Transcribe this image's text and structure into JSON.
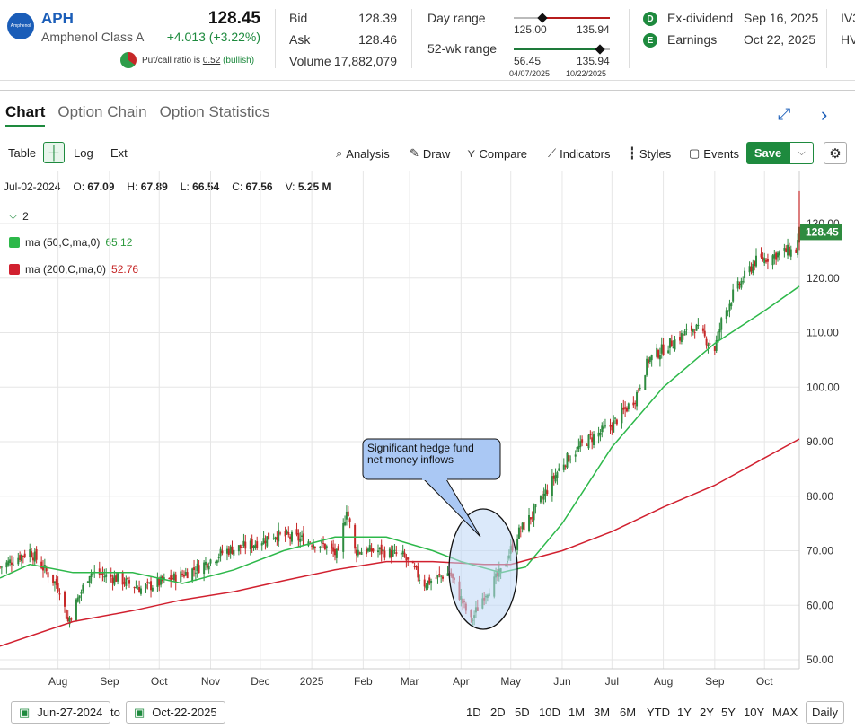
{
  "quote": {
    "logo_text": "Amphenol",
    "symbol": "APH",
    "company": "Amphenol Class A",
    "price": "128.45",
    "change": "+4.013 (+3.22%)",
    "putcall_prefix": "Put/call ratio is ",
    "putcall_value": "0.52",
    "putcall_suffix": "(bullish)",
    "bid_label": "Bid",
    "bid": "128.39",
    "ask_label": "Ask",
    "ask": "128.46",
    "volume_label": "Volume",
    "volume": "17,882,079",
    "day_range_label": "Day range",
    "day_low": "125.00",
    "day_high": "135.94",
    "wk52_label": "52-wk range",
    "wk52_low": "56.45",
    "wk52_high": "135.94",
    "wk52_low_date": "04/07/2025",
    "wk52_high_date": "10/22/2025",
    "exdiv_badge": "D",
    "exdiv_label": "Ex-dividend",
    "exdiv_date": "Sep 16, 2025",
    "earn_badge": "E",
    "earn_label": "Earnings",
    "earn_date": "Oct 22, 2025",
    "cutoff_1": "IV3",
    "cutoff_2": "HV"
  },
  "tabs": [
    {
      "label": "Chart",
      "active": true
    },
    {
      "label": "Option Chain",
      "active": false
    },
    {
      "label": "Option Statistics",
      "active": false
    }
  ],
  "toolbar": {
    "table": "Table",
    "log": "Log",
    "ext": "Ext",
    "analysis": "Analysis",
    "draw": "Draw",
    "compare": "Compare",
    "indicators": "Indicators",
    "styles": "Styles",
    "events": "Events",
    "save": "Save"
  },
  "ohlc": {
    "date": "Jul-02-2024",
    "o_label": "O:",
    "o": "67.09",
    "h_label": "H:",
    "h": "67.89",
    "l_label": "L:",
    "l": "66.54",
    "c_label": "C:",
    "c": "67.56",
    "v_label": "V:",
    "v": "5.25 M"
  },
  "legend": {
    "count": "2",
    "ma50_label": "ma (50,C,ma,0)",
    "ma50_value": "65.12",
    "ma50_color": "#2db84a",
    "ma200_label": "ma (200,C,ma,0)",
    "ma200_value": "52.76",
    "ma200_color": "#d1202f"
  },
  "annotation": {
    "line1": "Significant hedge fund",
    "line2": "net money inflows"
  },
  "footer": {
    "from": "Jun-27-2024",
    "to_label": "to",
    "to": "Oct-22-2025",
    "ranges": [
      "1D",
      "2D",
      "5D",
      "10D",
      "1M",
      "3M",
      "6M",
      "YTD",
      "1Y",
      "2Y",
      "5Y",
      "10Y",
      "MAX"
    ],
    "interval": "Daily"
  },
  "chart_data": {
    "type": "candlestick",
    "last_price_label": "128.45",
    "ylim": [
      50,
      135
    ],
    "y_ticks": [
      50,
      60,
      70,
      80,
      90,
      100,
      110,
      120,
      130
    ],
    "y_tick_labels": [
      "50.00",
      "60.00",
      "70.00",
      "80.00",
      "90.00",
      "100.00",
      "110.00",
      "120.00",
      "130.00"
    ],
    "x_tick_labels": [
      "Aug",
      "Sep",
      "Oct",
      "Nov",
      "Dec",
      "2025",
      "Feb",
      "Mar",
      "Apr",
      "May",
      "Jun",
      "Jul",
      "Aug",
      "Sep",
      "Oct"
    ],
    "x_tick_dates": [
      "2024-08-01",
      "2024-09-01",
      "2024-10-01",
      "2024-11-01",
      "2024-12-01",
      "2025-01-01",
      "2025-02-01",
      "2025-03-01",
      "2025-04-01",
      "2025-05-01",
      "2025-06-01",
      "2025-07-01",
      "2025-08-01",
      "2025-09-01",
      "2025-10-01"
    ],
    "price_series": {
      "name": "APH",
      "dates": [
        "2024-06-27",
        "2024-07-15",
        "2024-08-02",
        "2024-08-07",
        "2024-08-20",
        "2024-09-05",
        "2024-09-20",
        "2024-10-10",
        "2024-10-25",
        "2024-11-10",
        "2024-11-25",
        "2024-12-10",
        "2024-12-27",
        "2025-01-08",
        "2025-01-17",
        "2025-01-22",
        "2025-01-27",
        "2025-02-10",
        "2025-02-25",
        "2025-03-10",
        "2025-03-25",
        "2025-04-07",
        "2025-04-15",
        "2025-04-25",
        "2025-05-05",
        "2025-05-15",
        "2025-06-01",
        "2025-06-15",
        "2025-07-01",
        "2025-07-15",
        "2025-07-23",
        "2025-08-01",
        "2025-08-10",
        "2025-08-20",
        "2025-09-01",
        "2025-09-05",
        "2025-09-12",
        "2025-09-25",
        "2025-10-05",
        "2025-10-15",
        "2025-10-20",
        "2025-10-22"
      ],
      "close": [
        67,
        70,
        63,
        57,
        66,
        65,
        63,
        65,
        67,
        70,
        71,
        73,
        72,
        71,
        69,
        78,
        70,
        70,
        69,
        64,
        66,
        57,
        62,
        66,
        73,
        77,
        86,
        90,
        93,
        98,
        105,
        107,
        109,
        111,
        107,
        112,
        117,
        123,
        124,
        125,
        125,
        128.45
      ]
    },
    "ma50": {
      "name": "ma (50,C,ma,0)",
      "dates": [
        "2024-06-27",
        "2024-07-15",
        "2024-08-10",
        "2024-09-15",
        "2024-10-15",
        "2024-11-15",
        "2024-12-15",
        "2025-01-15",
        "2025-02-15",
        "2025-03-15",
        "2025-04-01",
        "2025-04-25",
        "2025-05-10",
        "2025-06-01",
        "2025-07-01",
        "2025-08-01",
        "2025-09-01",
        "2025-10-01",
        "2025-10-22"
      ],
      "values": [
        65,
        67.5,
        66,
        66,
        64,
        66.5,
        70,
        72.5,
        72.5,
        70,
        68,
        66,
        67,
        75,
        89,
        100,
        108,
        114,
        118.5
      ]
    },
    "ma200": {
      "name": "ma (200,C,ma,0)",
      "dates": [
        "2024-06-27",
        "2024-08-10",
        "2024-09-15",
        "2024-10-15",
        "2024-11-15",
        "2024-12-15",
        "2025-01-15",
        "2025-02-15",
        "2025-03-15",
        "2025-04-15",
        "2025-05-01",
        "2025-06-01",
        "2025-07-01",
        "2025-08-01",
        "2025-09-01",
        "2025-10-01",
        "2025-10-22"
      ],
      "values": [
        52.5,
        57,
        59,
        61,
        62.5,
        64.5,
        66.5,
        68,
        68,
        67.5,
        67.5,
        70,
        73.5,
        78,
        82,
        87,
        90.5
      ]
    }
  }
}
